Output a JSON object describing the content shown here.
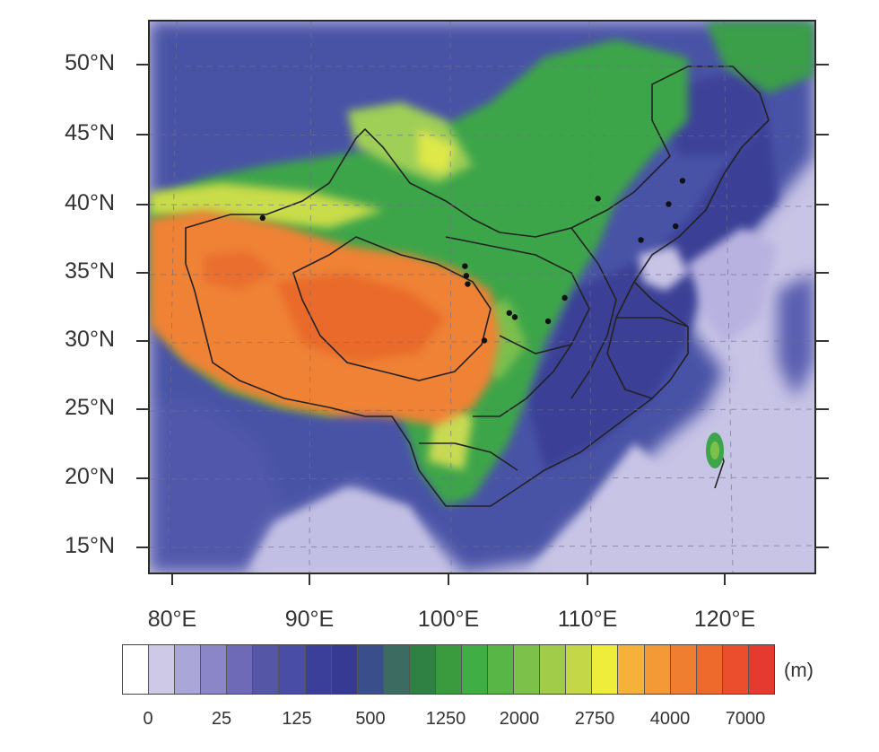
{
  "map": {
    "lat_labels": [
      "50°N",
      "45°N",
      "40°N",
      "35°N",
      "30°N",
      "25°N",
      "20°N",
      "15°N"
    ],
    "lon_labels": [
      "80°E",
      "90°E",
      "100°E",
      "110°E",
      "120°E"
    ],
    "extent": {
      "lon": [
        78,
        127
      ],
      "lat": [
        13,
        53
      ]
    },
    "station_markers": [
      [
        86.2,
        39.0
      ],
      [
        110.4,
        40.4
      ],
      [
        116.5,
        41.7
      ],
      [
        115.5,
        40.0
      ],
      [
        116.0,
        38.4
      ],
      [
        113.5,
        37.4
      ],
      [
        100.8,
        35.5
      ],
      [
        100.9,
        34.8
      ],
      [
        101.0,
        34.2
      ],
      [
        108.0,
        33.2
      ],
      [
        104.0,
        32.1
      ],
      [
        104.4,
        31.8
      ],
      [
        106.8,
        31.5
      ],
      [
        102.2,
        30.1
      ]
    ],
    "colors": {
      "plains": "#4a5aa8",
      "hills": "#3fa34a",
      "plateau": "#ef7f34",
      "ocean": "#c8c4e6",
      "boundary": "#222222"
    }
  },
  "colorbar": {
    "unit": "(m)",
    "tick_labels": [
      "0",
      "25",
      "125",
      "500",
      "1250",
      "2000",
      "2750",
      "4000",
      "7000"
    ],
    "colors": [
      "#ffffff",
      "#cdc9e7",
      "#aaa6d8",
      "#8b86c8",
      "#6f6ab8",
      "#5656a6",
      "#4a4da6",
      "#3c3f9a",
      "#363a92",
      "#3a4e8c",
      "#3c6b62",
      "#2f8043",
      "#3a9b3e",
      "#3faf45",
      "#57b646",
      "#7cc24a",
      "#a0cc49",
      "#c4d847",
      "#eeed3c",
      "#f4b238",
      "#f39a36",
      "#f07e30",
      "#ed6a2c",
      "#ea4e2c",
      "#e53a30"
    ]
  }
}
